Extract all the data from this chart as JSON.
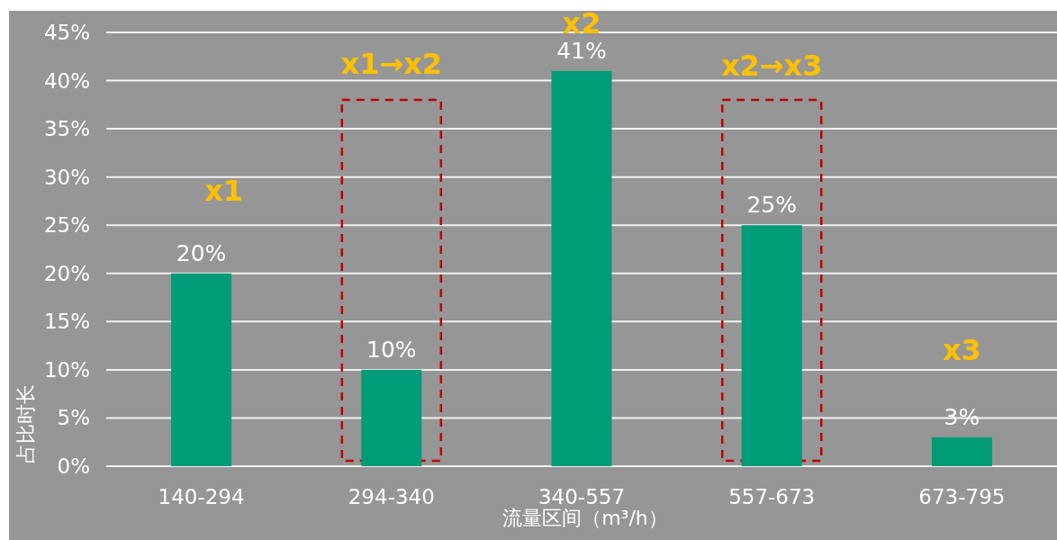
{
  "chart_data": {
    "type": "bar",
    "xlabel": "流量区间（m³/h）",
    "ylabel": "占比时长",
    "categories": [
      "140-294",
      "294-340",
      "340-557",
      "557-673",
      "673-795"
    ],
    "values": [
      20,
      10,
      41,
      25,
      3
    ],
    "value_labels": [
      "20%",
      "10%",
      "41%",
      "25%",
      "3%"
    ],
    "color": "#009b77",
    "ylim": [
      0,
      45
    ],
    "yticks": [
      {
        "value": 0,
        "label": "0%"
      },
      {
        "value": 5,
        "label": "5%"
      },
      {
        "value": 10,
        "label": "10%"
      },
      {
        "value": 15,
        "label": "15%"
      },
      {
        "value": 20,
        "label": "20%"
      },
      {
        "value": 25,
        "label": "25%"
      },
      {
        "value": 30,
        "label": "30%"
      },
      {
        "value": 35,
        "label": "35%"
      },
      {
        "value": 40,
        "label": "40%"
      },
      {
        "value": 45,
        "label": "45%"
      }
    ],
    "grid": "y",
    "annotations": [
      "x1",
      "x1→x2",
      "x2",
      "x2→x3",
      "x3"
    ]
  }
}
